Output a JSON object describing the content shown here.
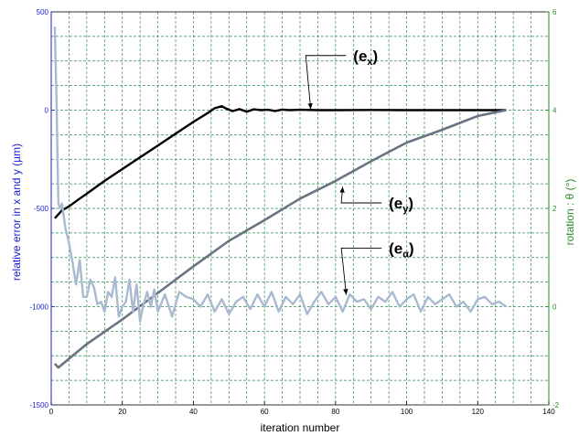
{
  "chart_data": {
    "type": "line",
    "title": "",
    "xlabel": "iteration number",
    "ylabel_left": "relative error in x and y  (µm)",
    "ylabel_right": "rotation : θ (°)",
    "xlim": [
      0,
      140
    ],
    "ylim_left": [
      -1500,
      500
    ],
    "ylim_right": [
      -2,
      6
    ],
    "x_ticks": [
      0,
      20,
      40,
      60,
      80,
      100,
      120,
      140
    ],
    "y_left_ticks": [
      -1500,
      -1000,
      -500,
      0,
      500
    ],
    "y_right_ticks": [
      -2,
      0,
      2,
      4,
      6
    ],
    "grid": true,
    "colors": {
      "left_axis": "#1c1cd0",
      "right_axis": "#2a8a2a",
      "grid": "#2e8b57",
      "ex": "#000000",
      "ey": "#6a7382",
      "ealpha": "#a9bad0"
    },
    "series": [
      {
        "key": "ex",
        "axis": "left",
        "x": [
          1,
          2,
          3,
          5,
          8,
          10,
          15,
          20,
          25,
          30,
          35,
          40,
          44,
          46,
          48,
          49,
          51,
          53,
          55,
          57,
          59,
          61,
          63,
          65,
          67,
          70,
          75,
          80,
          90,
          100,
          110,
          120,
          128
        ],
        "values": [
          -550,
          -530,
          -510,
          -490,
          -450,
          -425,
          -360,
          -300,
          -240,
          -180,
          -120,
          -60,
          -15,
          10,
          20,
          10,
          -5,
          5,
          -8,
          4,
          0,
          2,
          -4,
          3,
          0,
          2,
          0,
          0,
          1,
          0,
          0,
          0,
          0
        ]
      },
      {
        "key": "ey",
        "axis": "left",
        "x": [
          1,
          2,
          4,
          6,
          10,
          20,
          30,
          40,
          50,
          60,
          70,
          80,
          90,
          100,
          110,
          120,
          128
        ],
        "values": [
          -1290,
          -1310,
          -1280,
          -1250,
          -1190,
          -1065,
          -930,
          -795,
          -665,
          -560,
          -450,
          -360,
          -260,
          -165,
          -100,
          -30,
          0
        ]
      },
      {
        "key": "ealpha",
        "axis": "right",
        "x": [
          1,
          1.5,
          2,
          2.5,
          3,
          4,
          5,
          6,
          7,
          8,
          9,
          10,
          11,
          12,
          13,
          14,
          15,
          16,
          17,
          18,
          19,
          20,
          21,
          22,
          23,
          24,
          25,
          26,
          27,
          28,
          29,
          30,
          32,
          34,
          36,
          38,
          40,
          42,
          44,
          46,
          48,
          50,
          52,
          54,
          56,
          58,
          60,
          62,
          64,
          66,
          68,
          70,
          72,
          74,
          76,
          78,
          80,
          82,
          84,
          86,
          88,
          90,
          92,
          94,
          96,
          98,
          100,
          102,
          104,
          106,
          108,
          110,
          112,
          114,
          116,
          118,
          120,
          122,
          124,
          126,
          128
        ],
        "values": [
          5.7,
          4.2,
          2.1,
          2.0,
          2.1,
          1.6,
          1.3,
          0.9,
          0.45,
          0.95,
          0.2,
          0.2,
          0.55,
          0.4,
          0.05,
          0.1,
          -0.1,
          0.3,
          0.2,
          0.6,
          -0.2,
          0.0,
          0.1,
          0.55,
          -0.1,
          0.45,
          -0.3,
          0.05,
          0.3,
          0.0,
          0.35,
          -0.1,
          0.25,
          -0.2,
          0.3,
          0.2,
          0.15,
          0.0,
          0.25,
          -0.1,
          0.15,
          -0.15,
          0.1,
          0.2,
          -0.05,
          0.25,
          0.0,
          0.3,
          -0.1,
          0.2,
          0.05,
          0.25,
          -0.15,
          0.1,
          0.3,
          0.05,
          0.2,
          -0.1,
          0.25,
          0.1,
          0.15,
          -0.05,
          0.2,
          0.1,
          0.3,
          0.0,
          0.15,
          0.25,
          -0.1,
          0.2,
          0.05,
          0.15,
          0.25,
          0.0,
          0.1,
          -0.1,
          0.15,
          0.2,
          0.05,
          0.1,
          0.0
        ]
      }
    ],
    "annotations": [
      {
        "key": "ex",
        "text": "(e",
        "sub": "x",
        "close": ")",
        "label_x": 85,
        "label_y": 250,
        "arrow_to_x": 73,
        "arrow_to_y": 5
      },
      {
        "key": "ey",
        "text": "(e",
        "sub": "y",
        "close": ")",
        "label_x": 95,
        "label_y": -500,
        "arrow_to_x": 82,
        "arrow_to_y": -390
      },
      {
        "key": "ealpha",
        "text": "(e",
        "sub": "α",
        "close": ")",
        "label_x": 95,
        "label_y": -730,
        "arrow_to_x": 83,
        "arrow_to_y": -940
      }
    ]
  }
}
